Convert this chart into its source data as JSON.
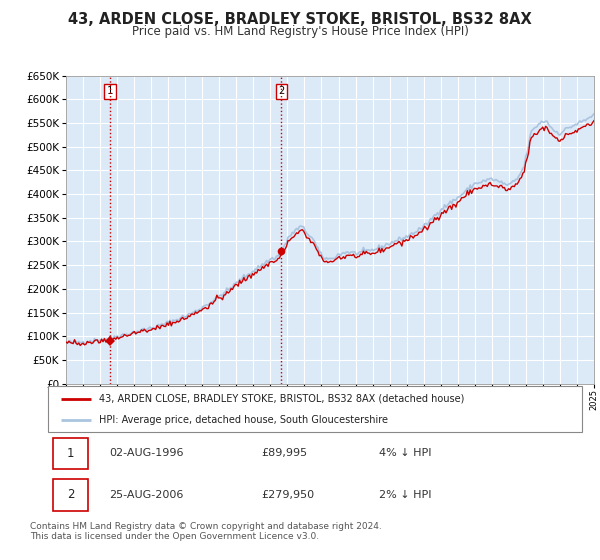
{
  "title": "43, ARDEN CLOSE, BRADLEY STOKE, BRISTOL, BS32 8AX",
  "subtitle": "Price paid vs. HM Land Registry's House Price Index (HPI)",
  "title_fontsize": 10.5,
  "subtitle_fontsize": 8.5,
  "background_color": "#ffffff",
  "plot_bg_color": "#dce9f7",
  "grid_color": "#ffffff",
  "red_line_color": "#cc0000",
  "blue_line_color": "#aac4e0",
  "sale1_x": 1996.58,
  "sale1_y": 89995,
  "sale1_label": "1",
  "sale2_x": 2006.64,
  "sale2_y": 279950,
  "sale2_label": "2",
  "xmin": 1994,
  "xmax": 2025,
  "ymin": 0,
  "ymax": 650000,
  "yticks": [
    0,
    50000,
    100000,
    150000,
    200000,
    250000,
    300000,
    350000,
    400000,
    450000,
    500000,
    550000,
    600000,
    650000
  ],
  "legend_entries": [
    {
      "label": "43, ARDEN CLOSE, BRADLEY STOKE, BRISTOL, BS32 8AX (detached house)",
      "color": "#cc0000"
    },
    {
      "label": "HPI: Average price, detached house, South Gloucestershire",
      "color": "#aac4e0"
    }
  ],
  "table_rows": [
    {
      "num": "1",
      "date": "02-AUG-1996",
      "price": "£89,995",
      "pct": "4% ↓ HPI"
    },
    {
      "num": "2",
      "date": "25-AUG-2006",
      "price": "£279,950",
      "pct": "2% ↓ HPI"
    }
  ],
  "footnote": "Contains HM Land Registry data © Crown copyright and database right 2024.\nThis data is licensed under the Open Government Licence v3.0.",
  "footnote_fontsize": 6.5
}
